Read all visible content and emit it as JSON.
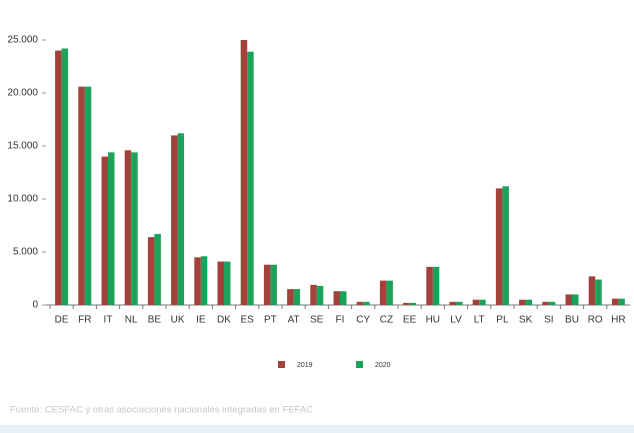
{
  "chart_data": {
    "type": "bar",
    "categories": [
      "DE",
      "FR",
      "IT",
      "NL",
      "BE",
      "UK",
      "IE",
      "DK",
      "ES",
      "PT",
      "AT",
      "SE",
      "FI",
      "CY",
      "CZ",
      "EE",
      "HU",
      "LV",
      "LT",
      "PL",
      "SK",
      "SI",
      "BU",
      "RO",
      "HR"
    ],
    "series": [
      {
        "name": "2019",
        "color": "#a3423b",
        "values": [
          24000,
          20600,
          14000,
          14600,
          6400,
          16000,
          4500,
          4100,
          25000,
          3800,
          1500,
          1900,
          1300,
          300,
          2300,
          200,
          3600,
          300,
          500,
          11000,
          500,
          300,
          1000,
          2700,
          600
        ]
      },
      {
        "name": "2020",
        "color": "#1ca35b",
        "values": [
          24200,
          20600,
          14400,
          14400,
          6700,
          16200,
          4600,
          4100,
          23900,
          3800,
          1500,
          1800,
          1300,
          300,
          2300,
          200,
          3600,
          300,
          500,
          11200,
          500,
          300,
          1000,
          2400,
          600
        ]
      }
    ],
    "ylim": [
      0,
      25000
    ],
    "yticks": [
      0,
      {
        "value": 5000,
        "label": "5.000"
      },
      {
        "value": 10000,
        "label": "10.000"
      },
      {
        "value": 15000,
        "label": "15.000"
      },
      {
        "value": 20000,
        "label": "20.000"
      },
      {
        "value": 25000,
        "label": "25.000"
      }
    ],
    "grid": false,
    "source": "Fuente: CESFAC y otras asociaciones nacionales integradas en FEFAC"
  }
}
